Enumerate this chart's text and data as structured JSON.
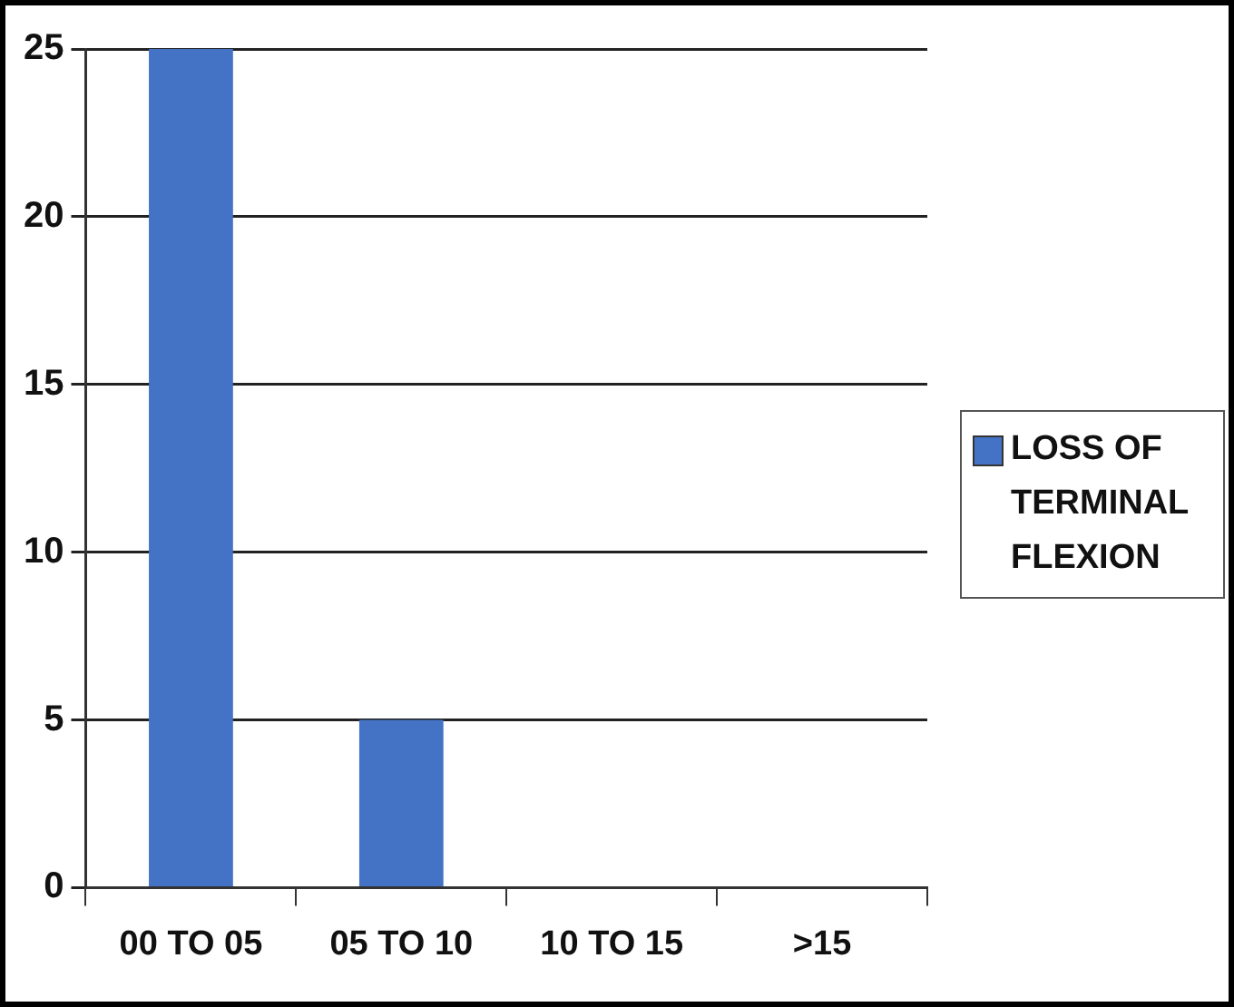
{
  "chart_data": {
    "type": "bar",
    "categories": [
      "00 TO 05",
      "05 TO 10",
      "10 TO 15",
      ">15"
    ],
    "series": [
      {
        "name": "LOSS OF TERMINAL FLEXION",
        "color": "#4472c4",
        "values": [
          25,
          5,
          0,
          0
        ]
      }
    ],
    "ylim": [
      0,
      25
    ],
    "yticks": [
      0,
      5,
      10,
      15,
      20,
      25
    ],
    "grid": "y",
    "legend": "right"
  }
}
